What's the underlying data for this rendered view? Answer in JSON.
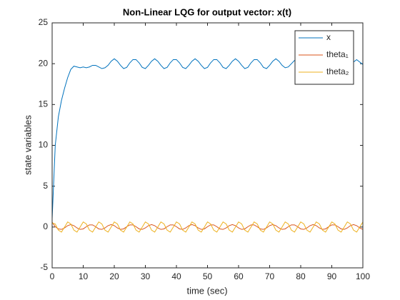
{
  "chart_data": {
    "type": "line",
    "title": "Non-Linear LQG for output vector: x(t)",
    "xlabel": "time (sec)",
    "ylabel": "state variables",
    "x": [
      0,
      1,
      2,
      3,
      4,
      5,
      6,
      7,
      8,
      9,
      10,
      11,
      12,
      13,
      14,
      15,
      16,
      17,
      18,
      19,
      20,
      21,
      22,
      23,
      24,
      25,
      26,
      27,
      28,
      29,
      30,
      31,
      32,
      33,
      34,
      35,
      36,
      37,
      38,
      39,
      40,
      41,
      42,
      43,
      44,
      45,
      46,
      47,
      48,
      49,
      50,
      51,
      52,
      53,
      54,
      55,
      56,
      57,
      58,
      59,
      60,
      61,
      62,
      63,
      64,
      65,
      66,
      67,
      68,
      69,
      70,
      71,
      72,
      73,
      74,
      75,
      76,
      77,
      78,
      79,
      80,
      81,
      82,
      83,
      84,
      85,
      86,
      87,
      88,
      89,
      90,
      91,
      92,
      93,
      94,
      95,
      96,
      97,
      98,
      99,
      100
    ],
    "series": [
      {
        "name": "x",
        "color": "#0072BD",
        "values": [
          1,
          10,
          13.5,
          15.5,
          17,
          18.3,
          19.3,
          19.7,
          19.6,
          19.5,
          19.6,
          19.5,
          19.6,
          19.8,
          19.8,
          19.6,
          19.4,
          19.5,
          19.8,
          20.3,
          20.6,
          20.3,
          19.8,
          19.4,
          19.55,
          20.1,
          20.5,
          20.5,
          20.1,
          19.55,
          19.4,
          19.8,
          20.3,
          20.6,
          20.3,
          19.8,
          19.4,
          19.55,
          20.1,
          20.5,
          20.5,
          20.1,
          19.55,
          19.4,
          19.8,
          20.3,
          20.6,
          20.3,
          19.8,
          19.4,
          19.55,
          20.1,
          20.5,
          20.5,
          20.1,
          19.55,
          19.4,
          19.8,
          20.3,
          20.6,
          20.3,
          19.8,
          19.4,
          19.55,
          20.1,
          20.5,
          20.5,
          20.1,
          19.55,
          19.4,
          19.8,
          20.3,
          20.6,
          20.3,
          19.8,
          19.5,
          19.6,
          20.0,
          20.4,
          20.4,
          20.0,
          19.6,
          19.5,
          19.8,
          20.2,
          20.5,
          20.2,
          19.8,
          19.5,
          19.6,
          20.0,
          20.4,
          20.4,
          20.0,
          19.6,
          19.5,
          19.8,
          20.2,
          20.5,
          20.2,
          19.9
        ]
      },
      {
        "name": "theta₁",
        "color": "#D95319",
        "values": [
          0.6,
          0.04,
          -0.23,
          -0.29,
          -0.11,
          0.17,
          0.3,
          0.17,
          -0.11,
          -0.29,
          -0.23,
          0.04,
          0.26,
          0.26,
          0.04,
          -0.23,
          -0.29,
          -0.11,
          0.17,
          0.3,
          0.17,
          -0.11,
          -0.29,
          -0.23,
          0.04,
          0.26,
          0.26,
          0.04,
          -0.23,
          -0.29,
          -0.11,
          0.17,
          0.3,
          0.17,
          -0.11,
          -0.29,
          -0.23,
          0.04,
          0.26,
          0.26,
          0.04,
          -0.23,
          -0.29,
          -0.11,
          0.17,
          0.3,
          0.17,
          -0.11,
          -0.29,
          -0.23,
          0.04,
          0.26,
          0.26,
          0.04,
          -0.23,
          -0.29,
          -0.11,
          0.17,
          0.3,
          0.17,
          -0.11,
          -0.29,
          -0.23,
          0.04,
          0.26,
          0.26,
          0.04,
          -0.23,
          -0.29,
          -0.11,
          0.17,
          0.3,
          0.17,
          -0.11,
          -0.29,
          -0.23,
          0.04,
          0.26,
          0.26,
          0.04,
          -0.23,
          -0.29,
          -0.11,
          0.17,
          0.3,
          0.17,
          -0.11,
          -0.29,
          -0.23,
          0.04,
          0.26,
          0.26,
          0.04,
          -0.23,
          -0.29,
          -0.11,
          0.17,
          0.3,
          0.17,
          -0.11,
          -0.29
        ]
      },
      {
        "name": "theta₂",
        "color": "#EDB120",
        "values": [
          0.5,
          0.38,
          -0.38,
          -0.62,
          0,
          0.62,
          0.38,
          -0.38,
          -0.62,
          0,
          0.62,
          0.38,
          -0.38,
          -0.62,
          0,
          0.62,
          0.38,
          -0.38,
          -0.62,
          0,
          0.62,
          0.38,
          -0.38,
          -0.62,
          0,
          0.62,
          0.38,
          -0.38,
          -0.62,
          0,
          0.62,
          0.38,
          -0.38,
          -0.62,
          0,
          0.62,
          0.38,
          -0.38,
          -0.62,
          0,
          0.62,
          0.38,
          -0.38,
          -0.62,
          0,
          0.62,
          0.38,
          -0.38,
          -0.62,
          0,
          0.62,
          0.38,
          -0.38,
          -0.62,
          0,
          0.62,
          0.38,
          -0.38,
          -0.62,
          0,
          0.62,
          0.38,
          -0.38,
          -0.62,
          0,
          0.62,
          0.38,
          -0.38,
          -0.62,
          0,
          0.62,
          0.38,
          -0.38,
          -0.62,
          0,
          0.62,
          0.38,
          -0.38,
          -0.62,
          0,
          0.62,
          0.38,
          -0.38,
          -0.62,
          0,
          0.62,
          0.38,
          -0.38,
          -0.62,
          0,
          0.62,
          0.38,
          -0.38,
          -0.62,
          0,
          0.62,
          0.38,
          -0.38,
          -0.62,
          0,
          0.62
        ]
      }
    ],
    "xlim": [
      0,
      100
    ],
    "xticks": [
      0,
      10,
      20,
      30,
      40,
      50,
      60,
      70,
      80,
      90,
      100
    ],
    "ylim": [
      -5,
      25
    ],
    "yticks": [
      -5,
      0,
      5,
      10,
      15,
      20,
      25
    ],
    "legend": "northeast"
  }
}
